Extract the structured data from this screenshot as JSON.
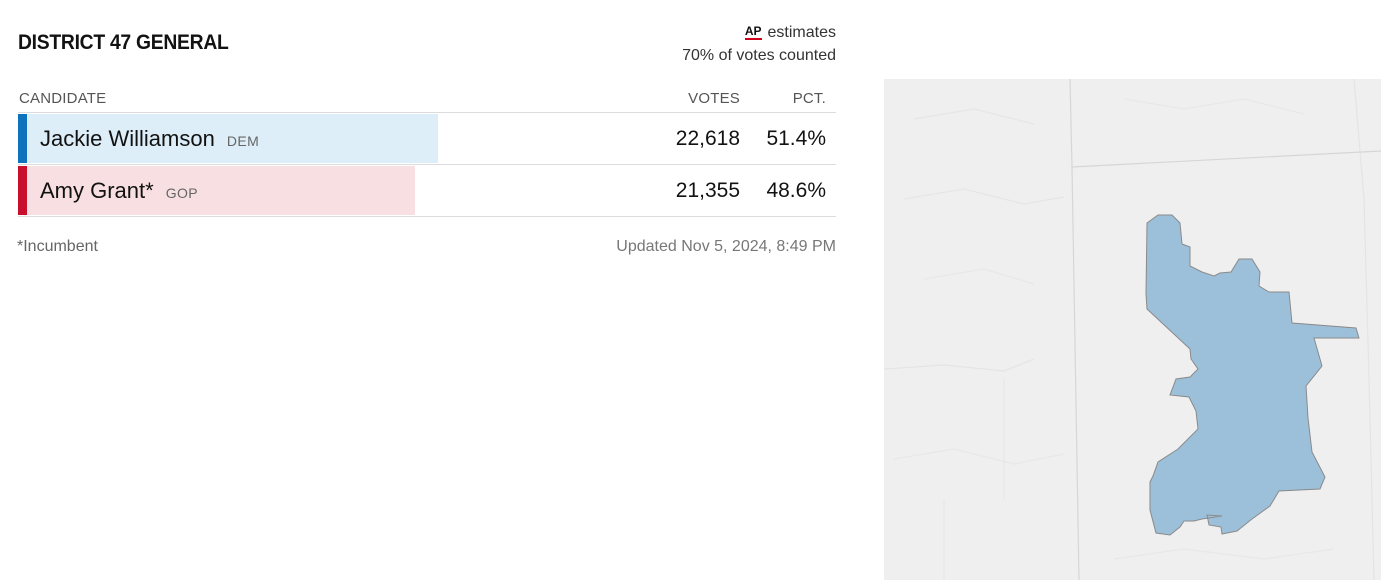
{
  "race": {
    "title": "DISTRICT 47 GENERAL",
    "ap_logo": "AP",
    "estimates_label": "estimates",
    "votes_counted": "70% of votes counted",
    "columns": {
      "candidate": "CANDIDATE",
      "votes": "VOTES",
      "pct": "PCT."
    },
    "candidates": [
      {
        "name": "Jackie Williamson",
        "party": "DEM",
        "votes": "22,618",
        "pct": "51.4%",
        "share": 0.514,
        "bar_color": "#deeef8",
        "accent_color": "#0f72bd"
      },
      {
        "name": "Amy Grant*",
        "party": "GOP",
        "votes": "21,355",
        "pct": "48.6%",
        "share": 0.486,
        "bar_color": "#f8e0e2",
        "accent_color": "#c8102e"
      }
    ],
    "footnote": "*Incumbent",
    "updated": "Updated Nov 5, 2024, 8:49 PM"
  },
  "map": {
    "background_color": "#efefef",
    "district_fill": "#9cc0da",
    "district_stroke": "#8a8a8a",
    "boundary_color": "#d6d6d6"
  }
}
